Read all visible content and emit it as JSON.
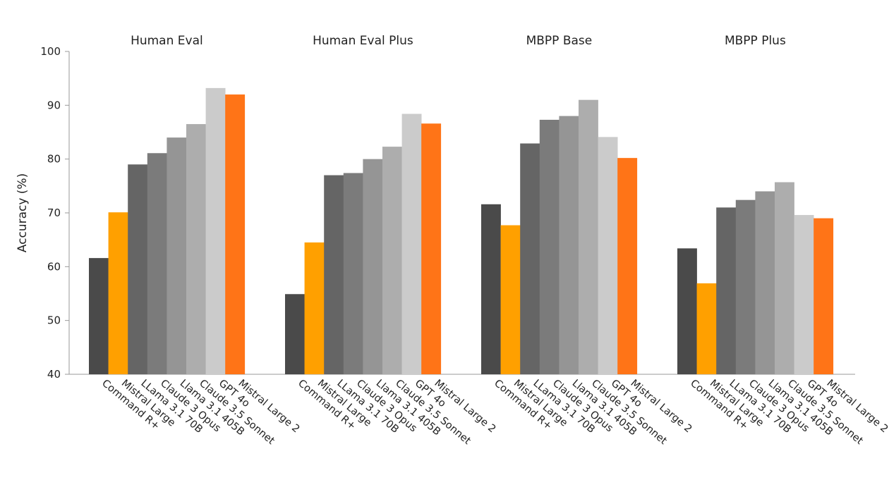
{
  "chart_data": {
    "type": "bar",
    "ylabel": "Accuracy (%)",
    "ylim": [
      40,
      100
    ],
    "yticks": [
      40,
      50,
      60,
      70,
      80,
      90,
      100
    ],
    "grid": false,
    "categories": [
      "Command R+",
      "Mistral Large",
      "LLama 3.1 70B",
      "Claude 3 Opus",
      "Llama 3.1 405B",
      "Claude 3.5 Sonnet",
      "GPT 4o",
      "Mistral Large 2"
    ],
    "colors": [
      "#4a4a4a",
      "#ffa000",
      "#656565",
      "#7b7b7b",
      "#959595",
      "#adadad",
      "#cbcbcb",
      "#ff7417"
    ],
    "groups": [
      {
        "title": "Human Eval",
        "values": [
          61.6,
          70.1,
          79.0,
          81.1,
          84.0,
          86.5,
          93.2,
          92.0
        ]
      },
      {
        "title": "Human Eval Plus",
        "values": [
          54.9,
          64.5,
          77.0,
          77.4,
          80.0,
          82.3,
          88.4,
          86.6
        ]
      },
      {
        "title": "MBPP Base",
        "values": [
          71.6,
          67.7,
          82.9,
          87.3,
          88.0,
          91.0,
          84.1,
          80.2
        ]
      },
      {
        "title": "MBPP Plus",
        "values": [
          63.4,
          56.9,
          71.0,
          72.4,
          74.0,
          75.7,
          69.6,
          69.0
        ]
      }
    ]
  }
}
